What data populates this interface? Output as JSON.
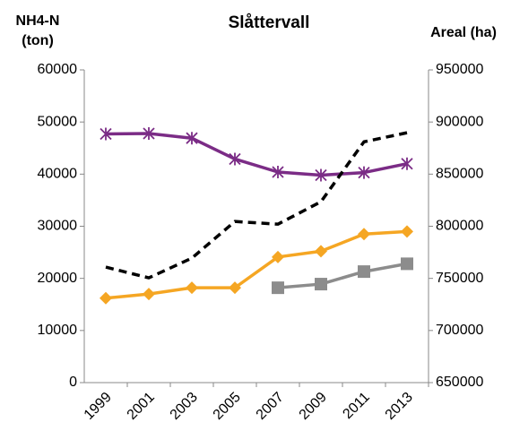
{
  "chart_data": {
    "type": "line",
    "title": "Slåttervall",
    "ylabel": [
      "NH4-N",
      "(ton)"
    ],
    "y2label": "Areal (ha)",
    "categories": [
      "1999",
      "2001",
      "2003",
      "2005",
      "2007",
      "2009",
      "2011",
      "2013"
    ],
    "ylim": [
      0,
      60000
    ],
    "yticks": [
      0,
      10000,
      20000,
      30000,
      40000,
      50000,
      60000
    ],
    "y2lim": [
      650000,
      950000
    ],
    "y2ticks": [
      650000,
      700000,
      750000,
      800000,
      850000,
      900000,
      950000
    ],
    "series": [
      {
        "color": "#7b2c86",
        "marker": "star",
        "values": [
          47700,
          47800,
          46900,
          42900,
          40400,
          39800,
          40300,
          42000
        ]
      },
      {
        "color": "#f5a623",
        "marker": "diamond",
        "values": [
          16200,
          17000,
          18200,
          18200,
          24100,
          25200,
          28500,
          29000
        ]
      },
      {
        "color": "#8c8c8c",
        "marker": "square",
        "values": [
          null,
          null,
          null,
          null,
          18200,
          18900,
          21300,
          22800
        ]
      },
      {
        "color": "#000000",
        "marker": "none",
        "dash": true,
        "axis": "y2",
        "values": [
          760800,
          750500,
          769400,
          804600,
          802000,
          823500,
          881000,
          889700
        ]
      }
    ]
  }
}
